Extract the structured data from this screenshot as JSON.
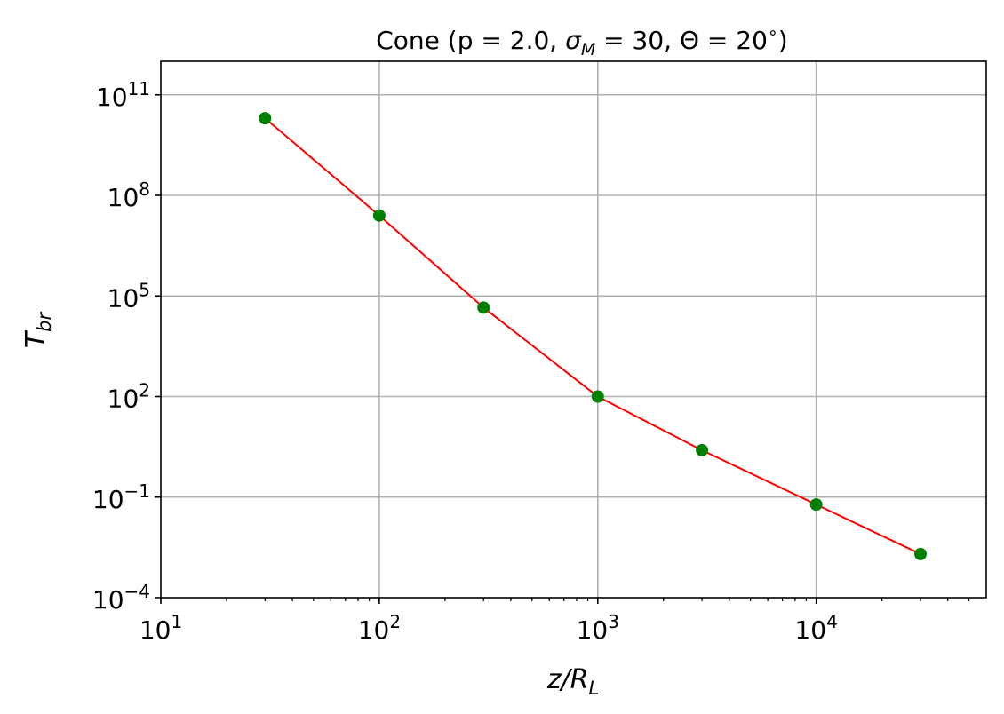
{
  "chart_data": {
    "type": "line",
    "title": "Cone  (p = 2.0, σ_M = 30, Θ = 20°)",
    "title_parts": {
      "prefix": "Cone  (p = 2.0, ",
      "sigma": "σ",
      "sigma_sub": "M",
      "mid": " = 30, ",
      "theta": "Θ = 20",
      "degree": "∘",
      "suffix": ")"
    },
    "xlabel": "z/R_L",
    "xlabel_parts": {
      "main": "z/R",
      "sub": "L"
    },
    "ylabel": "T_br",
    "ylabel_parts": {
      "main": "T",
      "sub": "br"
    },
    "x_scale": "log",
    "y_scale": "log",
    "xlim": [
      10,
      60000
    ],
    "ylim": [
      0.0001,
      1000000000000
    ],
    "grid": true,
    "x_ticks": [
      {
        "value": 10,
        "base": "10",
        "exp": "1"
      },
      {
        "value": 100,
        "base": "10",
        "exp": "2"
      },
      {
        "value": 1000,
        "base": "10",
        "exp": "3"
      },
      {
        "value": 10000,
        "base": "10",
        "exp": "4"
      }
    ],
    "y_ticks": [
      {
        "value": 0.0001,
        "base": "10",
        "exp": "−4"
      },
      {
        "value": 0.1,
        "base": "10",
        "exp": "−1"
      },
      {
        "value": 100,
        "base": "10",
        "exp": "2"
      },
      {
        "value": 100000,
        "base": "10",
        "exp": "5"
      },
      {
        "value": 100000000,
        "base": "10",
        "exp": "8"
      },
      {
        "value": 100000000000,
        "base": "10",
        "exp": "11"
      }
    ],
    "series": [
      {
        "x": [
          30,
          100,
          300,
          1000,
          3000,
          10000,
          30000
        ],
        "y": [
          20000000000,
          25000000,
          45000,
          100,
          2.5,
          0.06,
          0.002
        ],
        "line_color": "#ff0000",
        "marker_color": "#008000"
      }
    ]
  }
}
